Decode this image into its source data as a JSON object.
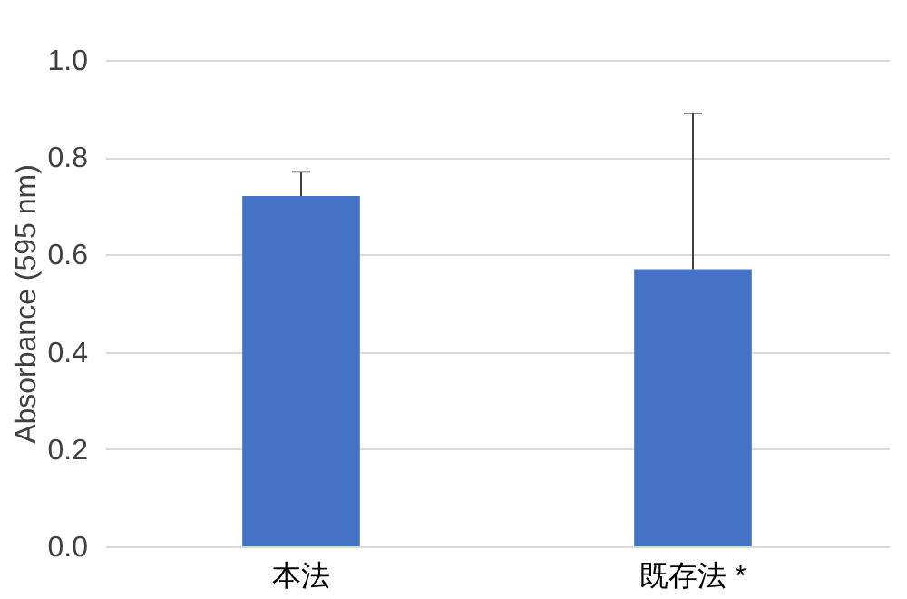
{
  "chart_data": {
    "type": "bar",
    "categories": [
      "本法",
      "既存法 *"
    ],
    "values": [
      0.72,
      0.57
    ],
    "color": "#4472c4",
    "errors": [
      [
        0.72,
        0.77
      ],
      [
        0.57,
        0.89
      ]
    ],
    "ylabel": "Absorbance (595 nm)",
    "ylim": [
      0,
      1.0
    ],
    "yticks": [
      {
        "value": 0,
        "label": "0.0"
      },
      {
        "value": 0.2,
        "label": "0.2"
      },
      {
        "value": 0.4,
        "label": "0.4"
      },
      {
        "value": 0.6,
        "label": "0.6"
      },
      {
        "value": 0.8,
        "label": "0.8"
      },
      {
        "value": 1.0,
        "label": "1.0"
      }
    ],
    "grid": "y"
  }
}
